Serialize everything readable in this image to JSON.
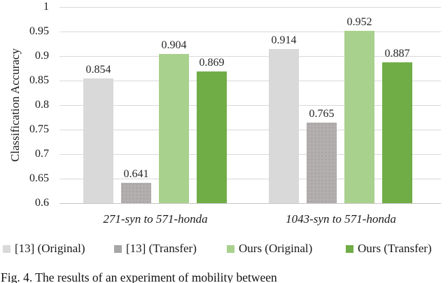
{
  "figure": {
    "caption": "Fig. 4. The results of an experiment of mobility between"
  },
  "chart_data": {
    "type": "bar",
    "title": "",
    "xlabel": "",
    "ylabel": "Classification Accuracy",
    "ylim": [
      0.6,
      1.0
    ],
    "ytick_step": 0.05,
    "ytick_labels": [
      "1",
      "0.95",
      "0.9",
      "0.85",
      "0.8",
      "0.75",
      "0.7",
      "0.65",
      "0.6"
    ],
    "grid": true,
    "legend_position": "bottom",
    "categories": [
      "271-syn to 571-honda",
      "1043-syn to 571-honda"
    ],
    "series": [
      {
        "name": "[13] (Original)",
        "color": "#d9d9d9",
        "legend_color": "#d9d9d9",
        "pattern": "none",
        "values": [
          0.854,
          0.914
        ]
      },
      {
        "name": "[13] (Transfer)",
        "color": "#b3afaf",
        "legend_color": "#a6a6a6",
        "pattern": "dots",
        "values": [
          0.641,
          0.765
        ]
      },
      {
        "name": "Ours (Original)",
        "color": "#a9d18e",
        "legend_color": "#a9d18e",
        "pattern": "none",
        "values": [
          0.904,
          0.952
        ]
      },
      {
        "name": "Ours (Transfer)",
        "color": "#70ad47",
        "legend_color": "#70ad47",
        "pattern": "none",
        "values": [
          0.869,
          0.887
        ]
      }
    ]
  }
}
